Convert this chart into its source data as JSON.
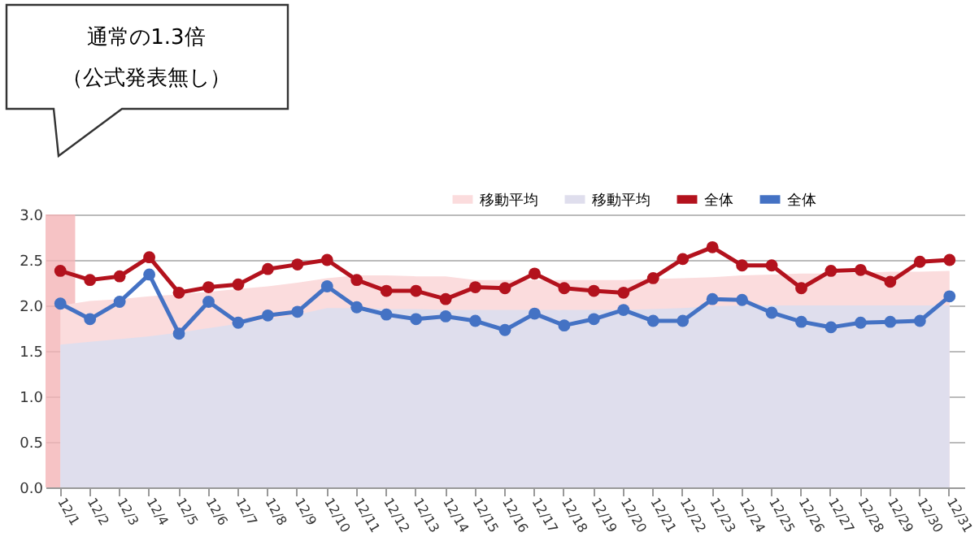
{
  "chart_data": {
    "type": "line",
    "categories": [
      "12/1",
      "12/2",
      "12/3",
      "12/4",
      "12/5",
      "12/6",
      "12/7",
      "12/8",
      "12/9",
      "12/10",
      "12/11",
      "12/12",
      "12/13",
      "12/14",
      "12/15",
      "12/16",
      "12/17",
      "12/18",
      "12/19",
      "12/20",
      "12/21",
      "12/22",
      "12/23",
      "12/24",
      "12/25",
      "12/26",
      "12/27",
      "12/28",
      "12/29",
      "12/30",
      "12/31"
    ],
    "series": [
      {
        "name": "移動平均",
        "type": "area",
        "color": "#fbdcdd",
        "values": [
          2.0,
          2.05,
          2.07,
          2.1,
          2.12,
          2.15,
          2.18,
          2.21,
          2.25,
          2.3,
          2.33,
          2.33,
          2.32,
          2.32,
          2.28,
          2.28,
          2.28,
          2.28,
          2.28,
          2.28,
          2.29,
          2.3,
          2.31,
          2.33,
          2.34,
          2.35,
          2.35,
          2.36,
          2.37,
          2.37,
          2.38
        ]
      },
      {
        "name": "移動平均",
        "type": "area",
        "color": "#dfdeed",
        "values": [
          1.57,
          1.6,
          1.63,
          1.66,
          1.7,
          1.75,
          1.8,
          1.85,
          1.9,
          1.97,
          1.97,
          1.96,
          1.96,
          1.95,
          1.95,
          1.95,
          1.95,
          1.95,
          1.95,
          1.95,
          1.96,
          1.97,
          1.99,
          2.0,
          2.0,
          2.0,
          2.0,
          2.0,
          2.0,
          2.0,
          2.0
        ]
      },
      {
        "name": "全体",
        "marker": "circle",
        "color": "#b3121d",
        "values": [
          2.38,
          2.28,
          2.32,
          2.53,
          2.14,
          2.2,
          2.23,
          2.4,
          2.45,
          2.5,
          2.28,
          2.16,
          2.16,
          2.07,
          2.2,
          2.19,
          2.35,
          2.19,
          2.16,
          2.14,
          2.3,
          2.51,
          2.64,
          2.44,
          2.44,
          2.19,
          2.38,
          2.39,
          2.26,
          2.48,
          2.5
        ]
      },
      {
        "name": "全体",
        "marker": "circle",
        "color": "#4472c4",
        "values": [
          2.02,
          1.85,
          2.04,
          2.34,
          1.69,
          2.04,
          1.81,
          1.89,
          1.93,
          2.21,
          1.98,
          1.9,
          1.85,
          1.88,
          1.83,
          1.73,
          1.91,
          1.78,
          1.85,
          1.95,
          1.83,
          1.83,
          2.07,
          2.06,
          1.92,
          1.82,
          1.76,
          1.81,
          1.82,
          1.83,
          2.1
        ]
      }
    ],
    "ylim": [
      0,
      3
    ],
    "yticks": [
      {
        "value": 0,
        "label": "0.0"
      },
      {
        "value": 0.5,
        "label": "0.5"
      },
      {
        "value": 1,
        "label": "1.0"
      },
      {
        "value": 1.5,
        "label": "1.5"
      },
      {
        "value": 2,
        "label": "2.0"
      },
      {
        "value": 2.5,
        "label": "2.5"
      },
      {
        "value": 3,
        "label": "3.0"
      }
    ],
    "grid": "y",
    "legend": "top right",
    "line_style": "solid",
    "bands": [
      {
        "axis": "x",
        "from": "12/1",
        "to": "12/1",
        "color": "#f4b4b6"
      }
    ],
    "annotations": [
      "通常の1.3倍",
      "（公式発表無し）"
    ]
  }
}
